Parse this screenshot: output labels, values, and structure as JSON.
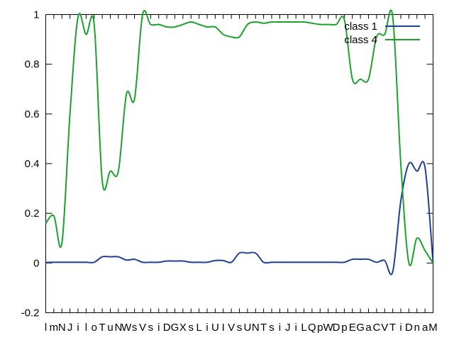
{
  "chart_data": {
    "type": "line",
    "ylim": [
      -0.2,
      1
    ],
    "yticks": [
      "-0.2",
      "0",
      "0.2",
      "0.4",
      "0.6",
      "0.8",
      "1"
    ],
    "categories": [
      "l",
      "m",
      "N",
      "J",
      "i",
      "l",
      "o",
      "T",
      "u",
      "N",
      "W",
      "s",
      "V",
      "s",
      "i",
      "D",
      "G",
      "X",
      "s",
      "L",
      "i",
      "U",
      "I",
      "V",
      "s",
      "U",
      "N",
      "T",
      "s",
      "i",
      "J",
      "i",
      "L",
      "Q",
      "p",
      "W",
      "D",
      "p",
      "E",
      "G",
      "a",
      "C",
      "V",
      "T",
      "i",
      "D",
      "n",
      "a",
      "M"
    ],
    "legend_position": "top-right",
    "grid": false,
    "series": [
      {
        "name": "class 1",
        "color": "#1f3f98",
        "values": [
          0.002,
          0.003,
          0.003,
          0.003,
          0.003,
          0.003,
          0.003,
          0.025,
          0.025,
          0.025,
          0.012,
          0.015,
          0.003,
          0.003,
          0.003,
          0.008,
          0.008,
          0.008,
          0.003,
          0.003,
          0.003,
          0.01,
          0.01,
          0.003,
          0.04,
          0.04,
          0.04,
          0.003,
          0.003,
          0.003,
          0.003,
          0.003,
          0.003,
          0.003,
          0.003,
          0.003,
          0.003,
          0.003,
          0.015,
          0.015,
          0.015,
          0.003,
          0.01,
          -0.035,
          0.25,
          0.4,
          0.37,
          0.385,
          0.0
        ]
      },
      {
        "name": "class 4",
        "color": "#1aa32a",
        "values": [
          0.16,
          0.19,
          0.08,
          0.6,
          0.99,
          0.92,
          0.96,
          0.33,
          0.37,
          0.37,
          0.68,
          0.66,
          1.0,
          0.96,
          0.96,
          0.95,
          0.95,
          0.96,
          0.97,
          0.96,
          0.95,
          0.95,
          0.92,
          0.91,
          0.91,
          0.96,
          0.97,
          0.965,
          0.97,
          0.97,
          0.97,
          0.97,
          0.97,
          0.965,
          0.96,
          0.96,
          0.96,
          0.98,
          0.74,
          0.74,
          0.74,
          0.91,
          0.92,
          0.99,
          0.4,
          0.0,
          0.1,
          0.05,
          0.0
        ]
      }
    ]
  }
}
